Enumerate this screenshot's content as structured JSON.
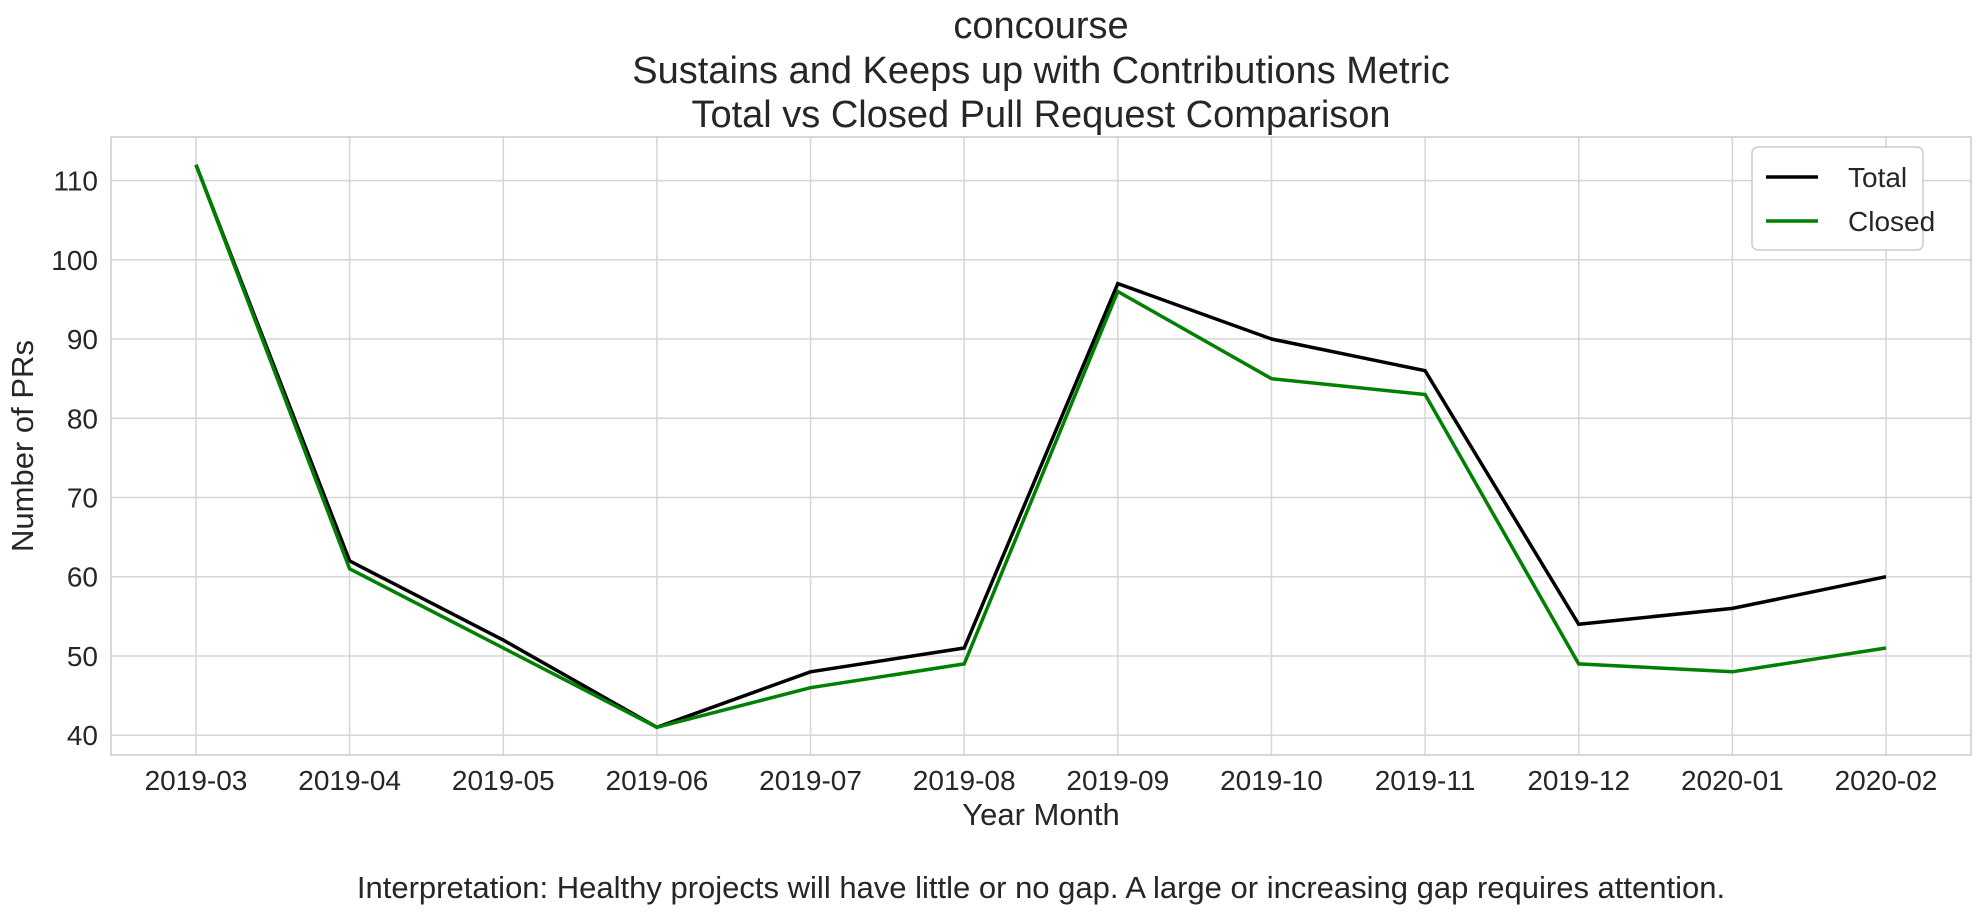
{
  "chart_data": {
    "type": "line",
    "title_lines": [
      "concourse",
      "Sustains and Keeps up with Contributions Metric",
      "Total vs Closed Pull Request Comparison"
    ],
    "xlabel": "Year Month",
    "ylabel": "Number of PRs",
    "categories": [
      "2019-03",
      "2019-04",
      "2019-05",
      "2019-06",
      "2019-07",
      "2019-08",
      "2019-09",
      "2019-10",
      "2019-11",
      "2019-12",
      "2020-01",
      "2020-02"
    ],
    "ylim": [
      37.5,
      115.5
    ],
    "yticks": [
      40,
      50,
      60,
      70,
      80,
      90,
      100,
      110
    ],
    "grid": true,
    "legend_position": "top-right",
    "series": [
      {
        "name": "Total",
        "color": "#000000",
        "values": [
          112,
          62,
          52,
          41,
          48,
          51,
          97,
          90,
          86,
          54,
          56,
          60
        ]
      },
      {
        "name": "Closed",
        "color": "#008000",
        "values": [
          112,
          61,
          51,
          41,
          46,
          49,
          96,
          85,
          83,
          49,
          48,
          51
        ]
      }
    ],
    "interpretation": "Interpretation: Healthy projects will have little or no gap. A large or increasing gap requires attention."
  }
}
